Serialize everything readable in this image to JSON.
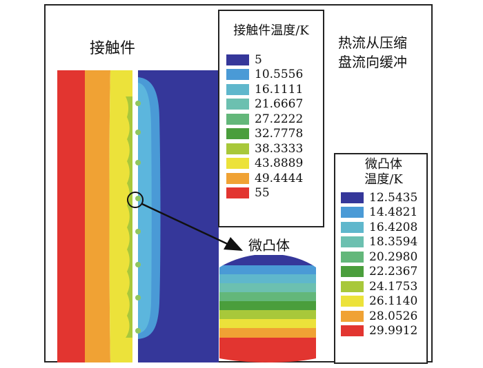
{
  "labels": {
    "contact_part": "接触件",
    "heat_flow_line1": "热流从压缩",
    "heat_flow_line2": "盘流向缓冲",
    "asperity": "微凸体"
  },
  "legend_contact": {
    "title": "接触件温度/K",
    "entries": [
      {
        "value": "5",
        "color": "#35379a"
      },
      {
        "value": "10.5556",
        "color": "#4a9ad6"
      },
      {
        "value": "16.1111",
        "color": "#5fb7cc"
      },
      {
        "value": "21.6667",
        "color": "#6cc0b0"
      },
      {
        "value": "27.2222",
        "color": "#63b77a"
      },
      {
        "value": "32.7778",
        "color": "#4a9e3c"
      },
      {
        "value": "38.3333",
        "color": "#a8c83a"
      },
      {
        "value": "43.8889",
        "color": "#ece23a"
      },
      {
        "value": "49.4444",
        "color": "#f0a234"
      },
      {
        "value": "55",
        "color": "#e23530"
      }
    ]
  },
  "legend_asperity": {
    "title_line1": "微凸体",
    "title_line2": "温度/K",
    "entries": [
      {
        "value": "12.5435",
        "color": "#35379a"
      },
      {
        "value": "14.4821",
        "color": "#4a9ad6"
      },
      {
        "value": "16.4208",
        "color": "#5fb7cc"
      },
      {
        "value": "18.3594",
        "color": "#6cc0b0"
      },
      {
        "value": "20.2980",
        "color": "#63b77a"
      },
      {
        "value": "22.2367",
        "color": "#4a9e3c"
      },
      {
        "value": "24.1753",
        "color": "#a8c83a"
      },
      {
        "value": "26.1140",
        "color": "#ece23a"
      },
      {
        "value": "28.0526",
        "color": "#f0a234"
      },
      {
        "value": "29.9912",
        "color": "#e23530"
      }
    ]
  },
  "colors": {
    "red": "#e23530",
    "orange": "#f0a234",
    "yellow": "#ece23a",
    "yellow_green": "#a8c83a",
    "light_blue": "#5cb6dd",
    "blue": "#4a9ad6",
    "navy": "#35379a",
    "bump_green": "#8fc660"
  }
}
